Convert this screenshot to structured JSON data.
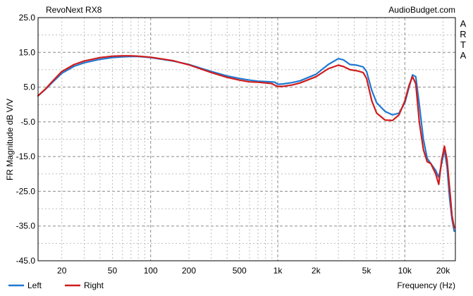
{
  "chart_data": {
    "type": "line",
    "title": "RevoNext RX8",
    "source": "AudioBudget.com",
    "side_label": "ARTA",
    "xlabel": "Frequency (Hz)",
    "ylabel": "FR Magnitude dB V/V",
    "xscale": "log",
    "xlim": [
      13,
      25000
    ],
    "ylim": [
      -45,
      25
    ],
    "yticks": [
      {
        "value": 25,
        "label": "25.0"
      },
      {
        "value": 15,
        "label": "15.0"
      },
      {
        "value": 5,
        "label": "5.0"
      },
      {
        "value": -5,
        "label": "-5.0"
      },
      {
        "value": -15,
        "label": "-15.0"
      },
      {
        "value": -25,
        "label": "-25.0"
      },
      {
        "value": -35,
        "label": "-35.0"
      },
      {
        "value": -45,
        "label": "-45.0"
      }
    ],
    "xticks": [
      {
        "value": 20,
        "label": "20"
      },
      {
        "value": 50,
        "label": "50"
      },
      {
        "value": 100,
        "label": "100"
      },
      {
        "value": 200,
        "label": "200"
      },
      {
        "value": 500,
        "label": "500"
      },
      {
        "value": 1000,
        "label": "1k"
      },
      {
        "value": 2000,
        "label": "2k"
      },
      {
        "value": 5000,
        "label": "5k"
      },
      {
        "value": 10000,
        "label": "10k"
      },
      {
        "value": 20000,
        "label": "20k"
      }
    ],
    "grid": true,
    "legend_position": "bottom-left",
    "series": [
      {
        "name": "Left",
        "color": "#1f78d1",
        "x": [
          13,
          15,
          17,
          20,
          25,
          30,
          40,
          50,
          60,
          70,
          80,
          100,
          150,
          200,
          300,
          400,
          500,
          600,
          700,
          800,
          900,
          950,
          1000,
          1100,
          1300,
          1500,
          2000,
          2500,
          3000,
          3300,
          3700,
          4200,
          4700,
          5000,
          5500,
          6000,
          7000,
          8000,
          9000,
          10000,
          10800,
          11500,
          12200,
          13000,
          14000,
          15000,
          16000,
          17500,
          18500,
          19500,
          20500,
          21500,
          22500,
          23500,
          24500
        ],
        "y": [
          2.5,
          4.5,
          6.5,
          9.0,
          11.0,
          12.0,
          13.0,
          13.5,
          13.7,
          13.8,
          13.8,
          13.5,
          12.5,
          11.5,
          9.5,
          8.2,
          7.5,
          7.0,
          6.7,
          6.6,
          6.5,
          6.4,
          5.8,
          5.9,
          6.3,
          6.8,
          8.7,
          11.5,
          13.2,
          12.8,
          11.5,
          11.3,
          10.8,
          9.5,
          4.0,
          0.5,
          -2.0,
          -3.0,
          -2.5,
          0.5,
          5.0,
          8.5,
          8.0,
          0.0,
          -10.0,
          -15.5,
          -17.0,
          -19.0,
          -21.0,
          -17.0,
          -13.0,
          -18.0,
          -27.0,
          -33.0,
          -36.5
        ]
      },
      {
        "name": "Right",
        "color": "#d01c1c",
        "x": [
          13,
          15,
          17,
          20,
          25,
          30,
          40,
          50,
          60,
          70,
          80,
          100,
          150,
          200,
          300,
          400,
          500,
          600,
          700,
          800,
          900,
          950,
          1000,
          1100,
          1300,
          1500,
          2000,
          2500,
          3000,
          3300,
          3700,
          4200,
          4700,
          5000,
          5500,
          6000,
          7000,
          8000,
          9000,
          10000,
          10800,
          11500,
          12200,
          13000,
          14000,
          15000,
          16000,
          17500,
          18500,
          19500,
          20500,
          21500,
          22500,
          23500,
          24500
        ],
        "y": [
          2.5,
          4.6,
          6.8,
          9.5,
          11.5,
          12.5,
          13.5,
          13.9,
          14.0,
          14.0,
          13.9,
          13.6,
          12.6,
          11.4,
          9.2,
          7.8,
          7.0,
          6.5,
          6.4,
          6.2,
          6.0,
          5.5,
          5.2,
          5.2,
          5.6,
          6.2,
          8.0,
          10.3,
          11.3,
          10.9,
          10.0,
          9.7,
          9.2,
          7.5,
          1.0,
          -2.5,
          -4.5,
          -4.6,
          -3.0,
          1.0,
          5.5,
          8.0,
          6.0,
          -5.0,
          -13.0,
          -16.5,
          -17.0,
          -20.0,
          -23.0,
          -16.0,
          -12.0,
          -16.0,
          -24.0,
          -32.0,
          -35.5
        ]
      }
    ]
  }
}
